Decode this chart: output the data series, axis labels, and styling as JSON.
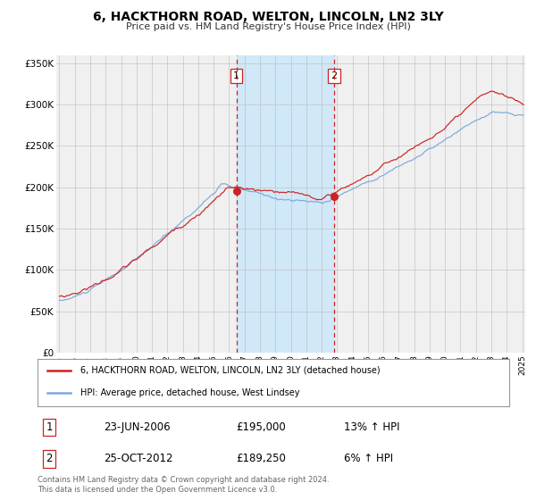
{
  "title": "6, HACKTHORN ROAD, WELTON, LINCOLN, LN2 3LY",
  "subtitle": "Price paid vs. HM Land Registry's House Price Index (HPI)",
  "red_label": "6, HACKTHORN ROAD, WELTON, LINCOLN, LN2 3LY (detached house)",
  "blue_label": "HPI: Average price, detached house, West Lindsey",
  "transaction1_date": "23-JUN-2006",
  "transaction1_price": 195000,
  "transaction1_hpi": "13% ↑ HPI",
  "transaction2_date": "25-OCT-2012",
  "transaction2_price": 189250,
  "transaction2_hpi": "6% ↑ HPI",
  "transaction1_x": 2006.47,
  "transaction2_x": 2012.81,
  "ylim": [
    0,
    360000
  ],
  "xlim_start": 1994.8,
  "xlim_end": 2025.2,
  "background_color": "#f0f0f0",
  "red_color": "#cc2222",
  "blue_color": "#7aaadd",
  "shading_color": "#d0e8f8",
  "dashed_line_color": "#cc2222",
  "footnote": "Contains HM Land Registry data © Crown copyright and database right 2024.\nThis data is licensed under the Open Government Licence v3.0."
}
